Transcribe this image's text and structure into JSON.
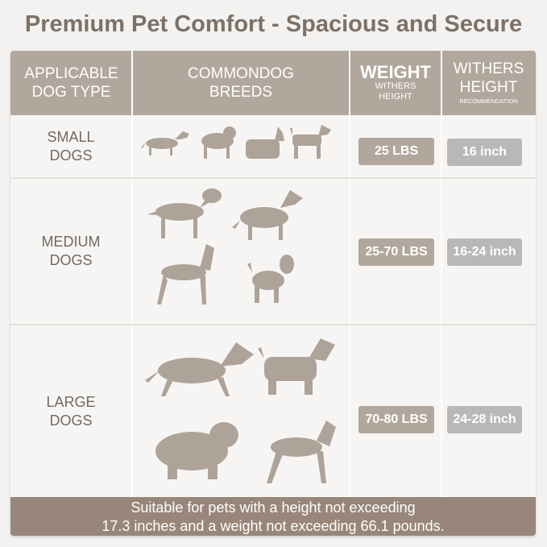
{
  "title": "Premium Pet Comfort - Spacious and Secure",
  "header": {
    "col1": [
      "APPLICABLE",
      "DOG TYPE"
    ],
    "col2": [
      "COMMONDOG",
      "BREEDS"
    ],
    "col3": {
      "main": "WEIGHT",
      "sub": [
        "WITHERS",
        "HEIGHT"
      ]
    },
    "col4": {
      "main": [
        "WITHERS",
        "HEIGHT"
      ],
      "sub": "RECOMMENDATION"
    }
  },
  "rows": [
    {
      "type": [
        "SMALL",
        "DOGS"
      ],
      "weight": "25 LBS",
      "height": "16 inch",
      "breed_icons": [
        "dachshund-icon",
        "pug-icon",
        "yorkshire-terrier-icon",
        "airedale-terrier-icon"
      ]
    },
    {
      "type": [
        "MEDIUM",
        "DOGS"
      ],
      "weight": "25-70 LBS",
      "height": "16-24 inch",
      "breed_icons": [
        "golden-retriever-icon",
        "collie-icon",
        "doberman-icon",
        "poodle-icon"
      ]
    },
    {
      "type": [
        "LARGE",
        "DOGS"
      ],
      "weight": "70-80 LBS",
      "height": "24-28 inch",
      "breed_icons": [
        "german-shepherd-icon",
        "afghan-hound-icon",
        "bernese-mountain-dog-icon",
        "boxer-icon"
      ]
    }
  ],
  "footer": [
    "Suitable for pets with a height not exceeding",
    "17.3 inches and a weight not exceeding 66.1 pounds."
  ],
  "colors": {
    "header": "#b1a79d",
    "weight_badge": "#b1a79d",
    "height_badge": "#b9b8b6",
    "footer": "#978679",
    "title": "#7d7066"
  }
}
